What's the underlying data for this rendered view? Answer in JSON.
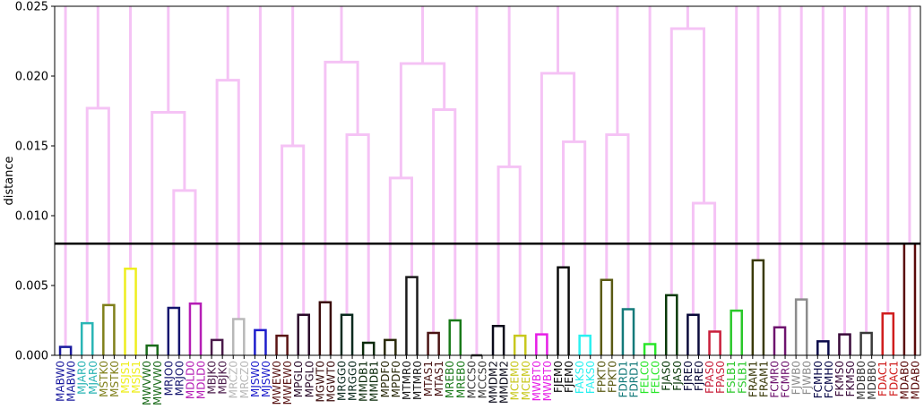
{
  "chart_data": {
    "type": "dendrogram",
    "ylabel": "distance",
    "ylim": [
      0,
      0.025
    ],
    "yticks": [
      "0.000",
      "0.005",
      "0.010",
      "0.015",
      "0.020",
      "0.025"
    ],
    "threshold": 0.008,
    "threshold_color": "#000000",
    "upper_link_color": "#f5c3f5",
    "leaves": [
      {
        "label": "MABW0",
        "color": "#1a1a9e"
      },
      {
        "label": "MABW0",
        "color": "#1a1a9e"
      },
      {
        "label": "MJAR0",
        "color": "#2ab5b5"
      },
      {
        "label": "MJAR0",
        "color": "#2ab5b5"
      },
      {
        "label": "MSTK0",
        "color": "#7f7f1a"
      },
      {
        "label": "MSTK0",
        "color": "#7f7f1a"
      },
      {
        "label": "MSJS1",
        "color": "#eeee1e"
      },
      {
        "label": "MSJS1",
        "color": "#eeee1e"
      },
      {
        "label": "MWVW0",
        "color": "#1a6b1a"
      },
      {
        "label": "MWVW0",
        "color": "#1a6b1a"
      },
      {
        "label": "MRJO0",
        "color": "#14146e"
      },
      {
        "label": "MRJO0",
        "color": "#14146e"
      },
      {
        "label": "MDLD0",
        "color": "#b51eb5"
      },
      {
        "label": "MDLD0",
        "color": "#b51eb5"
      },
      {
        "label": "MBJK0",
        "color": "#4a1a4a"
      },
      {
        "label": "MBJK0",
        "color": "#4a1a4a"
      },
      {
        "label": "MRCZ0",
        "color": "#b8b8b8"
      },
      {
        "label": "MRCZ0",
        "color": "#b8b8b8"
      },
      {
        "label": "MJSW0",
        "color": "#1e1ecc"
      },
      {
        "label": "MJSW0",
        "color": "#1e1ecc"
      },
      {
        "label": "MWEW0",
        "color": "#5a1414"
      },
      {
        "label": "MWEW0",
        "color": "#5a1414"
      },
      {
        "label": "MPGL0",
        "color": "#2a0a2a"
      },
      {
        "label": "MPGL0",
        "color": "#2a0a2a"
      },
      {
        "label": "MGWT0",
        "color": "#3a0a0a"
      },
      {
        "label": "MGWT0",
        "color": "#3a0a0a"
      },
      {
        "label": "MRGG0",
        "color": "#0a2a1e"
      },
      {
        "label": "MRGG0",
        "color": "#0a2a1e"
      },
      {
        "label": "MMDB1",
        "color": "#0a2a0a"
      },
      {
        "label": "MMDB1",
        "color": "#0a2a0a"
      },
      {
        "label": "MPDF0",
        "color": "#2a2a0a"
      },
      {
        "label": "MPDF0",
        "color": "#2a2a0a"
      },
      {
        "label": "MTMR0",
        "color": "#1a1a1a"
      },
      {
        "label": "MTMR0",
        "color": "#1a1a1a"
      },
      {
        "label": "MTAS1",
        "color": "#4a1414"
      },
      {
        "label": "MTAS1",
        "color": "#4a1414"
      },
      {
        "label": "MREB0",
        "color": "#1a7a1a"
      },
      {
        "label": "MREB0",
        "color": "#1a7a1a"
      },
      {
        "label": "MCCS0",
        "color": "#3a3a3a"
      },
      {
        "label": "MCCS0",
        "color": "#3a3a3a"
      },
      {
        "label": "MMDM2",
        "color": "#0a0a1a"
      },
      {
        "label": "MMDM2",
        "color": "#0a0a1a"
      },
      {
        "label": "MCEM0",
        "color": "#c8c81e"
      },
      {
        "label": "MCEM0",
        "color": "#c8c81e"
      },
      {
        "label": "MWBT0",
        "color": "#e61ee6"
      },
      {
        "label": "MWBT0",
        "color": "#e61ee6"
      },
      {
        "label": "FJEM0",
        "color": "#0a0a0a"
      },
      {
        "label": "FJEM0",
        "color": "#0a0a0a"
      },
      {
        "label": "FAKS0",
        "color": "#2af0f0"
      },
      {
        "label": "FAKS0",
        "color": "#2af0f0"
      },
      {
        "label": "FPKT0",
        "color": "#5a5a14"
      },
      {
        "label": "FPKT0",
        "color": "#5a5a14"
      },
      {
        "label": "FDRD1",
        "color": "#147a7a"
      },
      {
        "label": "FDRD1",
        "color": "#147a7a"
      },
      {
        "label": "FELC0",
        "color": "#2ae62a"
      },
      {
        "label": "FELC0",
        "color": "#2ae62a"
      },
      {
        "label": "FJAS0",
        "color": "#0a3a0a"
      },
      {
        "label": "FJAS0",
        "color": "#0a3a0a"
      },
      {
        "label": "FJRE0",
        "color": "#0a0a3a"
      },
      {
        "label": "FJRE0",
        "color": "#0a0a3a"
      },
      {
        "label": "FPAS0",
        "color": "#c81e3a"
      },
      {
        "label": "FPAS0",
        "color": "#c81e3a"
      },
      {
        "label": "FSLB1",
        "color": "#2ac82a"
      },
      {
        "label": "FSLB1",
        "color": "#2ac82a"
      },
      {
        "label": "FRAM1",
        "color": "#3a3a0a"
      },
      {
        "label": "FRAM1",
        "color": "#3a3a0a"
      },
      {
        "label": "FCMR0",
        "color": "#6e146e"
      },
      {
        "label": "FCMR0",
        "color": "#6e146e"
      },
      {
        "label": "FJWB0",
        "color": "#8c8c8c"
      },
      {
        "label": "FJWB0",
        "color": "#8c8c8c"
      },
      {
        "label": "FCMH0",
        "color": "#0a0a4a"
      },
      {
        "label": "FCMH0",
        "color": "#0a0a4a"
      },
      {
        "label": "FKMS0",
        "color": "#3a0a3a"
      },
      {
        "label": "FKMS0",
        "color": "#3a0a3a"
      },
      {
        "label": "MDBB0",
        "color": "#3a3a3a"
      },
      {
        "label": "MDBB0",
        "color": "#3a3a3a"
      },
      {
        "label": "FDAC1",
        "color": "#d01e1e"
      },
      {
        "label": "FDAC1",
        "color": "#d01e1e"
      },
      {
        "label": "MDAB0",
        "color": "#5a0a0a"
      },
      {
        "label": "MDAB0",
        "color": "#5a0a0a"
      }
    ],
    "pair_heights": [
      0.0006,
      0.0023,
      0.0036,
      0.0062,
      0.0007,
      0.0034,
      0.0037,
      0.0011,
      0.0026,
      0.0018,
      0.0014,
      0.0029,
      0.0038,
      0.0029,
      0.0009,
      0.0011,
      0.0056,
      0.0016,
      0.0025,
      0.0,
      0.0021,
      0.0014,
      0.0015,
      0.0063,
      0.0014,
      0.0054,
      0.0033,
      0.0008,
      0.0043,
      0.0029,
      0.0017,
      0.0032,
      0.0068,
      0.002,
      0.004,
      0.001,
      0.0015,
      0.0016,
      0.003,
      0.008
    ],
    "merges": [
      {
        "a": "pair:1",
        "b": "pair:2",
        "height": 0.0177
      },
      {
        "a": "pair:5",
        "b": "pair:6",
        "height": 0.0118
      },
      {
        "a": "pair:4",
        "b": "node:1",
        "height": 0.0174
      },
      {
        "a": "pair:7",
        "b": "pair:8",
        "height": 0.0197
      },
      {
        "a": "pair:10",
        "b": "pair:11",
        "height": 0.015
      },
      {
        "a": "pair:13",
        "b": "pair:14",
        "height": 0.0158
      },
      {
        "a": "pair:12",
        "b": "node:5",
        "height": 0.021
      },
      {
        "a": "pair:15",
        "b": "pair:16",
        "height": 0.0127
      },
      {
        "a": "pair:17",
        "b": "pair:18",
        "height": 0.0176
      },
      {
        "a": "node:7",
        "b": "node:8",
        "height": 0.0209
      },
      {
        "a": "pair:20",
        "b": "pair:21",
        "height": 0.0135
      },
      {
        "a": "pair:23",
        "b": "pair:24",
        "height": 0.0153
      },
      {
        "a": "pair:22",
        "b": "node:11",
        "height": 0.0202
      },
      {
        "a": "pair:25",
        "b": "pair:26",
        "height": 0.0158
      },
      {
        "a": "pair:29",
        "b": "pair:30",
        "height": 0.0109
      },
      {
        "a": "pair:28",
        "b": "node:14",
        "height": 0.0234
      }
    ],
    "tops": [
      "pair:0",
      "pair:3",
      "node:0",
      "node:2",
      "node:3",
      "pair:9",
      "node:4",
      "node:6",
      "pair:19",
      "node:9",
      "pair:27",
      "node:10",
      "node:12",
      "pair:31",
      "node:13",
      "pair:32",
      "pair:33",
      "node:15",
      "pair:34",
      "pair:35",
      "pair:36",
      "pair:37",
      "pair:38",
      "pair:39"
    ]
  }
}
